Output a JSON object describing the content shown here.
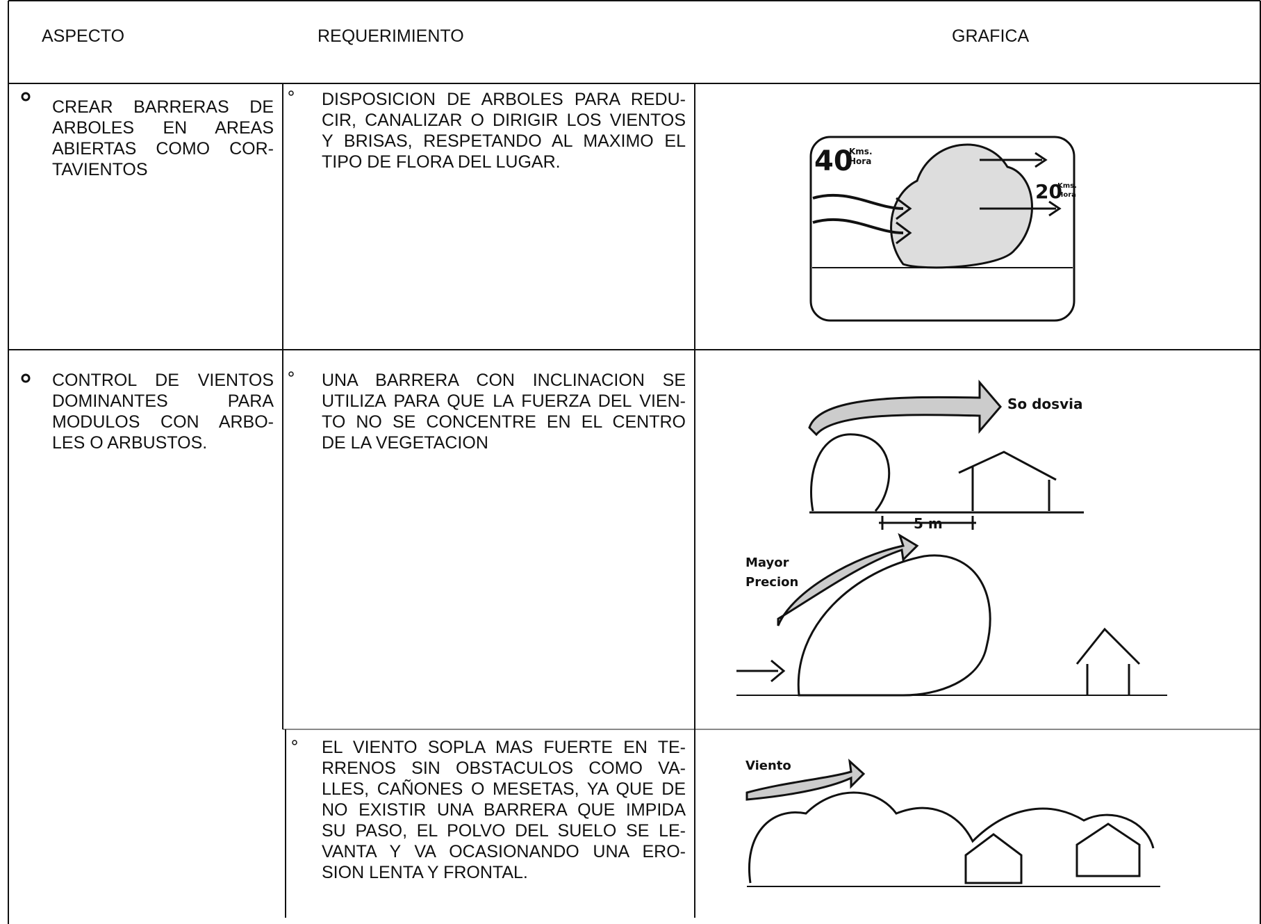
{
  "header": {
    "aspect": "ASPECTO",
    "requirement": "REQUERIMIENTO",
    "graphic": "GRAFICA"
  },
  "rows": [
    {
      "aspect": [
        "CREAR BARRERAS DE",
        "ARBOLES EN AREAS",
        "ABIERTAS COMO COR-",
        "TAVIENTOS"
      ],
      "requirements": [
        {
          "text": [
            "DISPOSICION DE ARBOLES PARA REDU-",
            "CIR, CANALIZAR O DIRIGIR LOS VIENTOS",
            "Y BRISAS, RESPETANDO AL MAXIMO EL",
            "TIPO DE FLORA DEL LUGAR."
          ],
          "graphic_labels": [
            "40",
            "Kms.",
            "Hora",
            "20",
            "Kms.",
            "Hora"
          ]
        }
      ]
    },
    {
      "aspect": [
        "CONTROL DE VIENTOS",
        "DOMINANTES PARA",
        "MODULOS CON ARBO-",
        "LES O ARBUSTOS."
      ],
      "requirements": [
        {
          "text": [
            "UNA BARRERA CON INCLINACION SE",
            "UTILIZA PARA QUE LA FUERZA DEL VIEN-",
            "TO NO SE CONCENTRE EN EL CENTRO",
            "DE LA VEGETACION"
          ],
          "graphic_labels": [
            "So dosvia",
            "5 m",
            "Mayor",
            "Precion"
          ]
        },
        {
          "text": [
            "EL VIENTO SOPLA MAS FUERTE EN TE-",
            "RRENOS SIN OBSTACULOS COMO VA-",
            "LLES, CAÑONES O MESETAS, YA QUE DE",
            "NO EXISTIR UNA BARRERA QUE IMPIDA",
            "SU PASO, EL POLVO DEL SUELO SE LE-",
            "VANTA Y VA OCASIONANDO UNA ERO-",
            "SION LENTA Y FRONTAL."
          ],
          "graphic_labels": [
            "Viento"
          ]
        }
      ]
    }
  ]
}
